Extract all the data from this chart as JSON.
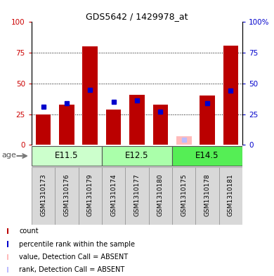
{
  "title": "GDS5642 / 1429978_at",
  "samples": [
    "GSM1310173",
    "GSM1310176",
    "GSM1310179",
    "GSM1310174",
    "GSM1310177",
    "GSM1310180",
    "GSM1310175",
    "GSM1310178",
    "GSM1310181"
  ],
  "red_values": [
    25,
    33,
    80,
    29,
    41,
    33,
    0,
    40,
    81
  ],
  "blue_values": [
    31,
    34,
    45,
    35,
    36,
    27,
    0,
    34,
    44
  ],
  "absent_value": 7,
  "absent_rank": 4,
  "absent_index": 6,
  "groups": [
    {
      "label": "E11.5",
      "start": 0,
      "end": 3,
      "color": "#ccffcc"
    },
    {
      "label": "E12.5",
      "start": 3,
      "end": 6,
      "color": "#aaffaa"
    },
    {
      "label": "E14.5",
      "start": 6,
      "end": 9,
      "color": "#55ee55"
    }
  ],
  "ylim": [
    0,
    100
  ],
  "yticks": [
    0,
    25,
    50,
    75,
    100
  ],
  "red_color": "#bb0000",
  "blue_color": "#0000cc",
  "absent_red_color": "#ffbbbb",
  "absent_blue_color": "#bbbbff",
  "bar_width": 0.65,
  "plot_bg": "#ffffff",
  "label_color_left": "#cc0000",
  "label_color_right": "#0000cc",
  "age_label": "age",
  "legend_items": [
    {
      "color": "#bb0000",
      "label": "count"
    },
    {
      "color": "#0000cc",
      "label": "percentile rank within the sample"
    },
    {
      "color": "#ffbbbb",
      "label": "value, Detection Call = ABSENT"
    },
    {
      "color": "#bbbbff",
      "label": "rank, Detection Call = ABSENT"
    }
  ]
}
